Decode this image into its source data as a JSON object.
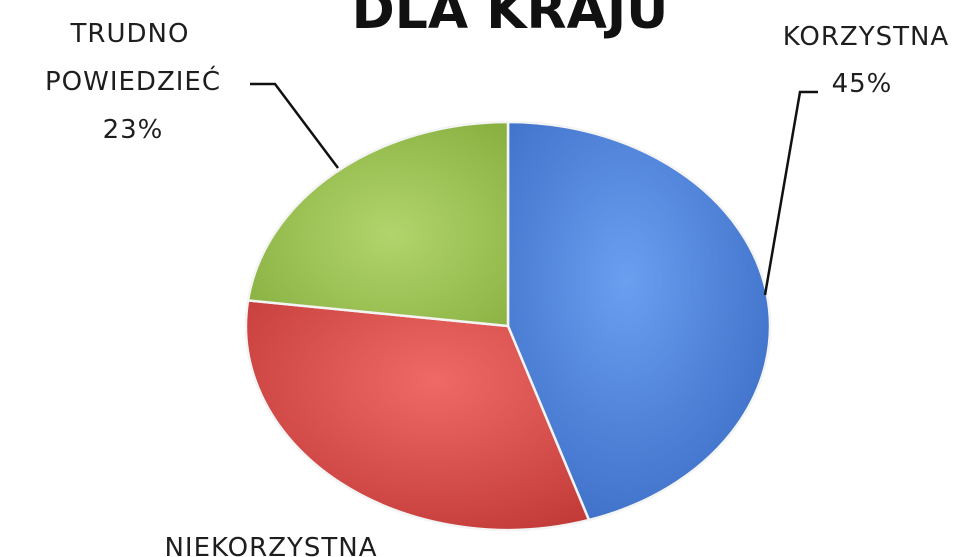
{
  "chart_data": {
    "type": "pie",
    "title": "DLA KRAJU",
    "slices": [
      {
        "label": "KORZYSTNA",
        "value": 45,
        "value_label": "45%",
        "color": "#4a80d6"
      },
      {
        "label": "NIEKORZYSTNA",
        "value": 32,
        "value_label": "",
        "color": "#d84a48"
      },
      {
        "label": "TRUDNO POWIEDZIEĆ",
        "label_lines": [
          "TRUDNO",
          "POWIEDZIEĆ"
        ],
        "value": 23,
        "value_label": "23%",
        "color": "#97c04f"
      }
    ],
    "legend": "none"
  }
}
